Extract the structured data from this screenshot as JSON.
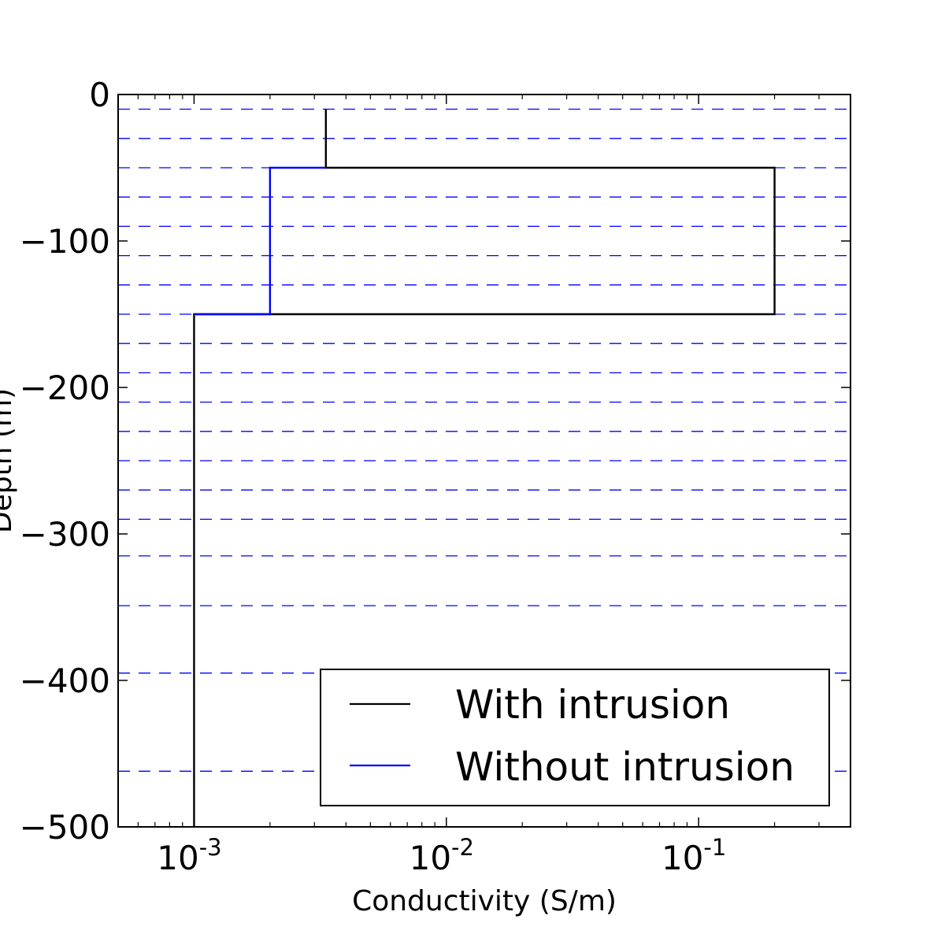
{
  "chart_data": {
    "type": "line",
    "title": "",
    "xlabel": "Conductivity (S/m)",
    "ylabel": "Depth (m)",
    "x_scale": "log",
    "xlim": [
      0.0005,
      0.4
    ],
    "ylim": [
      -500,
      0
    ],
    "x_ticks": [
      {
        "value": 0.001,
        "base": "10",
        "exp": "-3"
      },
      {
        "value": 0.01,
        "base": "10",
        "exp": "-2"
      },
      {
        "value": 0.1,
        "base": "10",
        "exp": "-1"
      }
    ],
    "y_ticks": [
      {
        "value": 0,
        "label": "0"
      },
      {
        "value": -100,
        "label": "−100"
      },
      {
        "value": -200,
        "label": "−200"
      },
      {
        "value": -300,
        "label": "−300"
      },
      {
        "value": -400,
        "label": "−400"
      },
      {
        "value": -500,
        "label": "−500"
      }
    ],
    "layer_boundaries": {
      "style": "dashed",
      "color": "#0000ff",
      "depths": [
        -10,
        -30,
        -50,
        -70,
        -90,
        -110,
        -130,
        -150,
        -170,
        -190,
        -210,
        -230,
        -250,
        -270,
        -290,
        -315,
        -349,
        -395,
        -462
      ]
    },
    "series": [
      {
        "name": "With intrusion",
        "color": "#000000",
        "points": [
          [
            0.00333,
            -10
          ],
          [
            0.00333,
            -50
          ],
          [
            0.2,
            -50
          ],
          [
            0.2,
            -150
          ],
          [
            0.001,
            -150
          ],
          [
            0.001,
            -500
          ]
        ]
      },
      {
        "name": "Without intrusion",
        "color": "#0000ff",
        "points": [
          [
            0.00333,
            -50
          ],
          [
            0.002,
            -50
          ],
          [
            0.002,
            -150
          ],
          [
            0.001,
            -150
          ]
        ]
      }
    ],
    "legend": {
      "position": "lower-right"
    }
  }
}
